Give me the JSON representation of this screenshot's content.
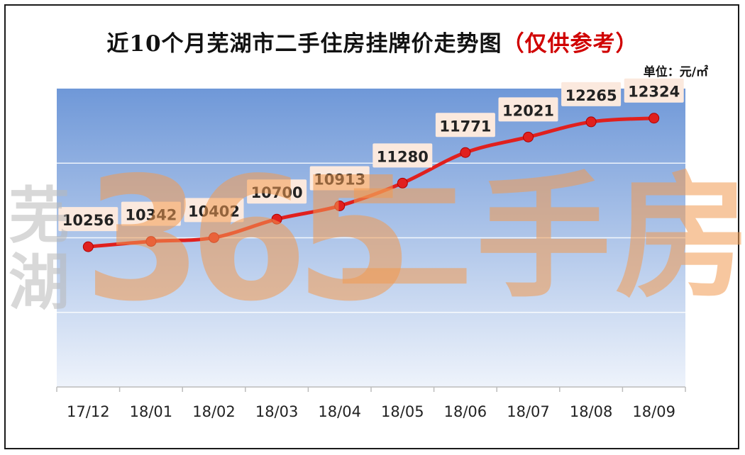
{
  "chart_data": {
    "type": "line",
    "title": "近10个月芜湖市二手住房挂牌价走势图",
    "title_note": "（仅供参考）",
    "unit": "单位：元/㎡",
    "categories": [
      "17/12",
      "18/01",
      "18/02",
      "18/03",
      "18/04",
      "18/05",
      "18/06",
      "18/07",
      "18/08",
      "18/09"
    ],
    "series": [
      {
        "values": [
          10256,
          10342,
          10402,
          10700,
          10913,
          11280,
          11771,
          12021,
          12265,
          12324
        ],
        "labels": [
          "10256",
          "10342",
          "10402",
          "10700",
          "10913",
          "11280",
          "11771",
          "12021",
          "12265",
          "12324"
        ]
      }
    ],
    "ylim": [
      8000,
      12800
    ],
    "grid": true,
    "line_color": "#e0201e",
    "plot_gradient": [
      "#6f98d8",
      "#eef3fb"
    ]
  },
  "watermark": {
    "city": [
      "芜",
      "湖"
    ],
    "number": "365",
    "text": "二手房"
  }
}
